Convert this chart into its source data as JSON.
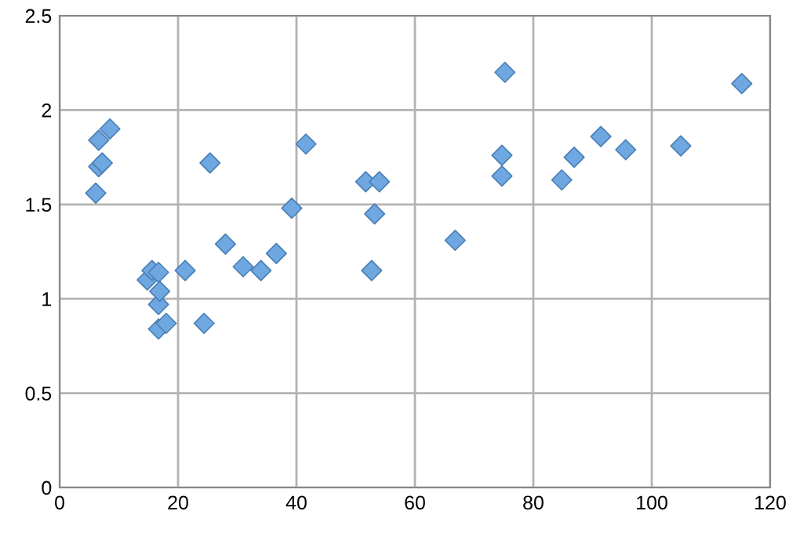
{
  "chart_data": {
    "type": "scatter",
    "marker": "diamond",
    "grid": true,
    "legend": false,
    "xlim": [
      0,
      120
    ],
    "xticks": [
      0,
      20,
      40,
      60,
      80,
      100,
      120
    ],
    "ylim": [
      0,
      2.5
    ],
    "yticks": [
      0,
      0.5,
      1,
      1.5,
      2,
      2.5
    ],
    "series": [
      {
        "color": "#6fa8e0",
        "x": [
          6.1,
          6.6,
          6.6,
          7.2,
          8.5,
          14.8,
          15.6,
          16.7,
          16.7,
          16.9,
          16.7,
          18,
          21.2,
          24.4,
          25.4,
          28,
          31,
          34,
          36.6,
          39.2,
          41.6,
          51.7,
          52.7,
          53.2,
          54,
          66.8,
          74.7,
          74.7,
          75.2,
          84.8,
          86.9,
          91.4,
          95.6,
          104.9,
          115.2
        ],
        "values": [
          1.56,
          1.84,
          1.7,
          1.72,
          1.9,
          1.1,
          1.15,
          1.14,
          0.97,
          1.04,
          0.84,
          0.87,
          1.15,
          0.87,
          1.72,
          1.29,
          1.17,
          1.15,
          1.24,
          1.48,
          1.82,
          1.62,
          1.15,
          1.45,
          1.62,
          1.31,
          1.76,
          1.65,
          2.2,
          1.63,
          1.75,
          1.86,
          1.79,
          1.81,
          2.14
        ]
      }
    ]
  }
}
